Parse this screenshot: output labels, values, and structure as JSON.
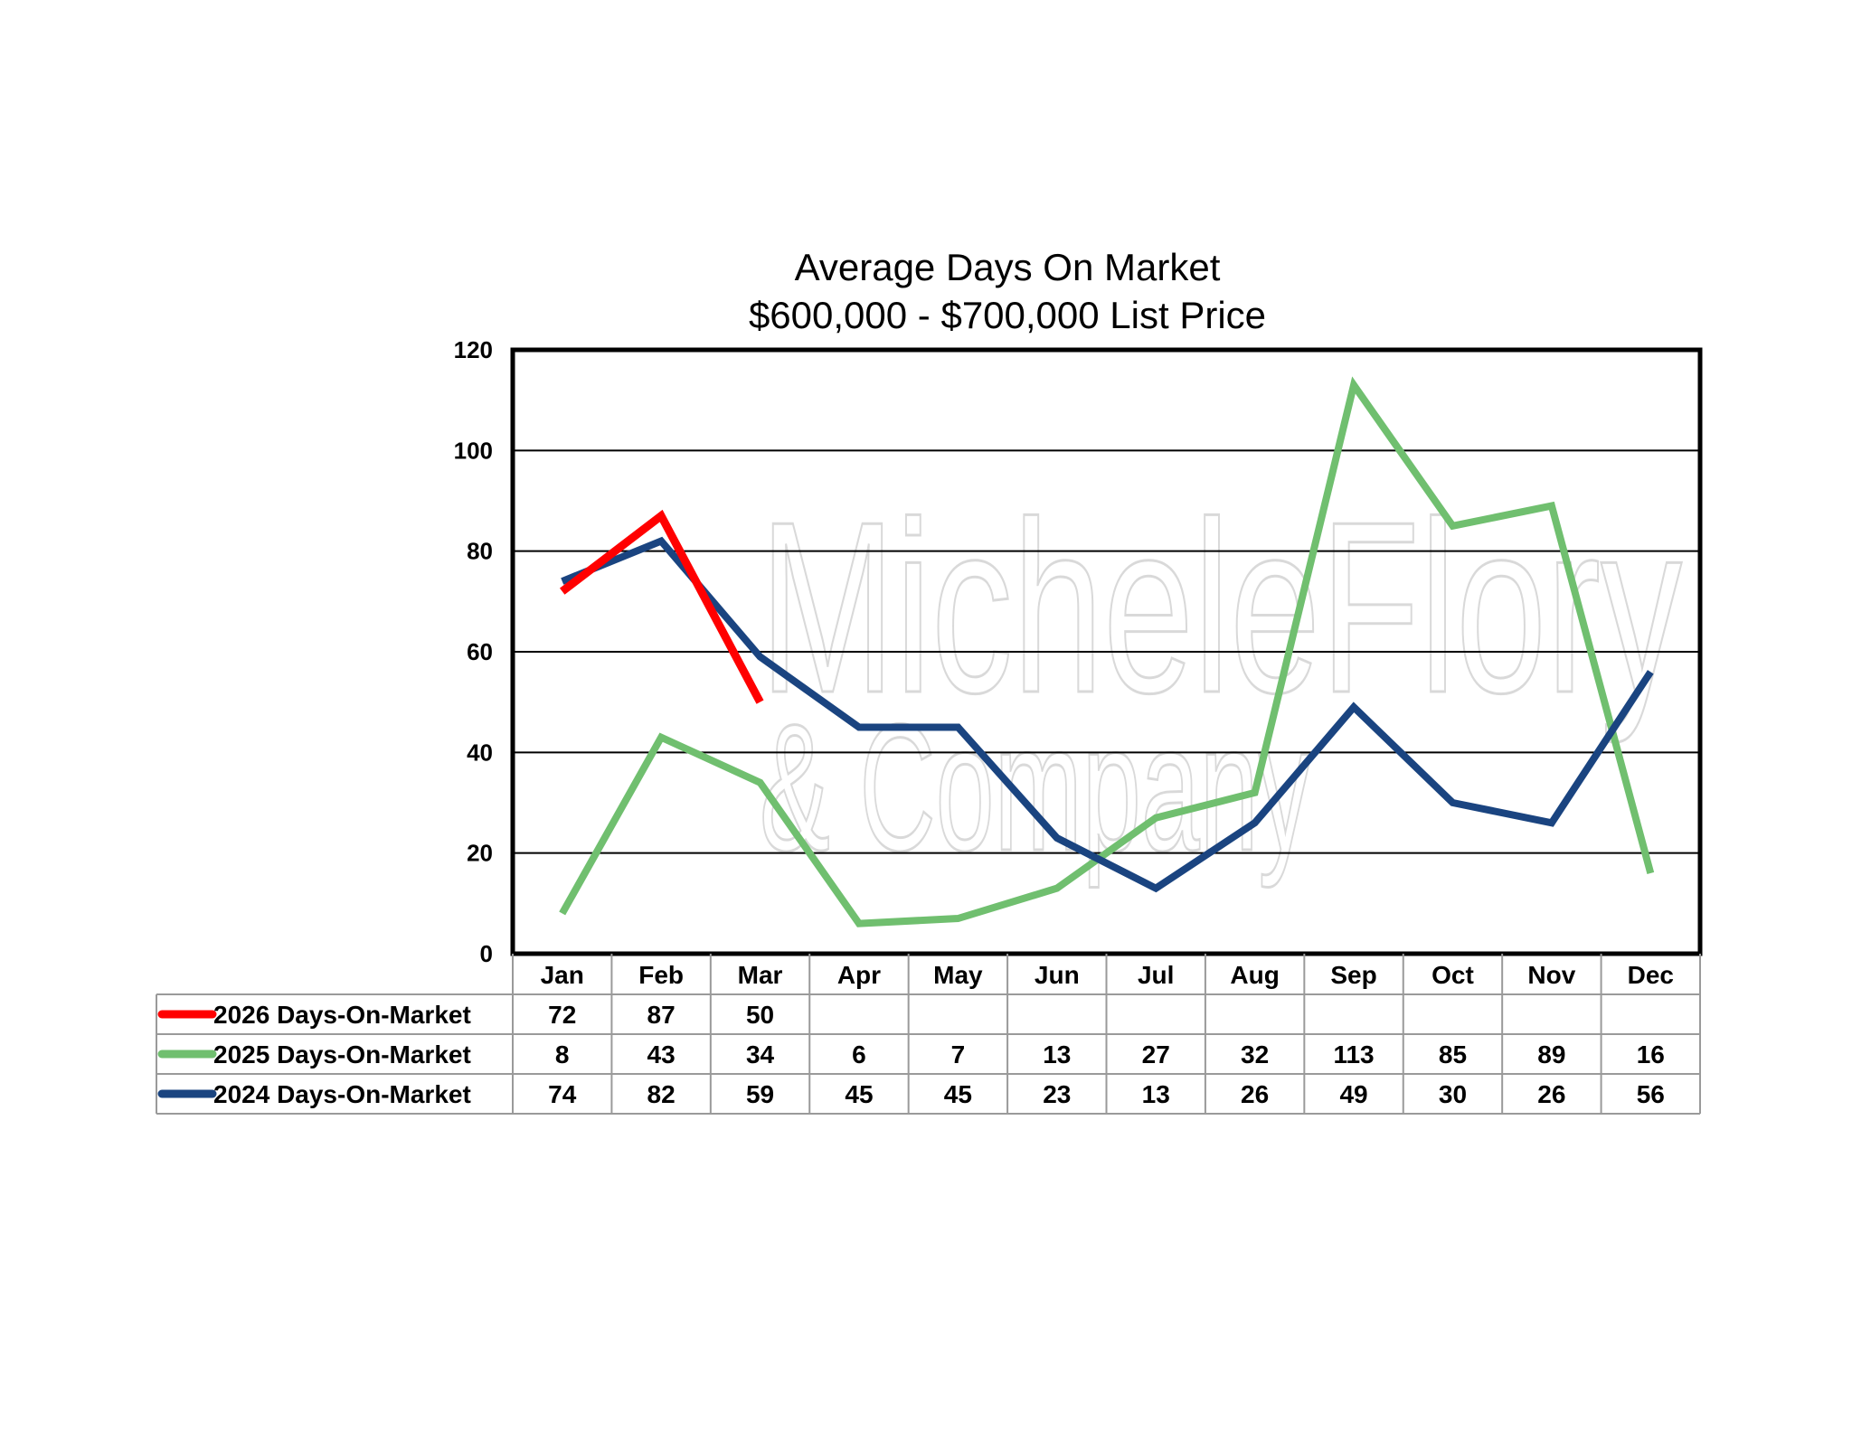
{
  "chart_data": {
    "type": "line",
    "title": "Average Days On Market",
    "subtitle": "$600,000 - $700,000 List Price",
    "categories": [
      "Jan",
      "Feb",
      "Mar",
      "Apr",
      "May",
      "Jun",
      "Jul",
      "Aug",
      "Sep",
      "Oct",
      "Nov",
      "Dec"
    ],
    "ylim": [
      0,
      120
    ],
    "yticks": [
      0,
      20,
      40,
      60,
      80,
      100,
      120
    ],
    "grid": true,
    "legend": "bottom-table",
    "series": [
      {
        "name": "2026 Days-On-Market",
        "color": "#ff0000",
        "values": [
          72,
          87,
          50,
          null,
          null,
          null,
          null,
          null,
          null,
          null,
          null,
          null
        ]
      },
      {
        "name": "2025 Days-On-Market",
        "color": "#70bf6f",
        "values": [
          8,
          43,
          34,
          6,
          7,
          13,
          27,
          32,
          113,
          85,
          89,
          16
        ]
      },
      {
        "name": "2024 Days-On-Market",
        "color": "#1a4480",
        "values": [
          74,
          82,
          59,
          45,
          45,
          23,
          13,
          26,
          49,
          30,
          26,
          56
        ]
      }
    ]
  },
  "watermark": {
    "line1": "MicheleFlory",
    "line2": "& Company"
  }
}
